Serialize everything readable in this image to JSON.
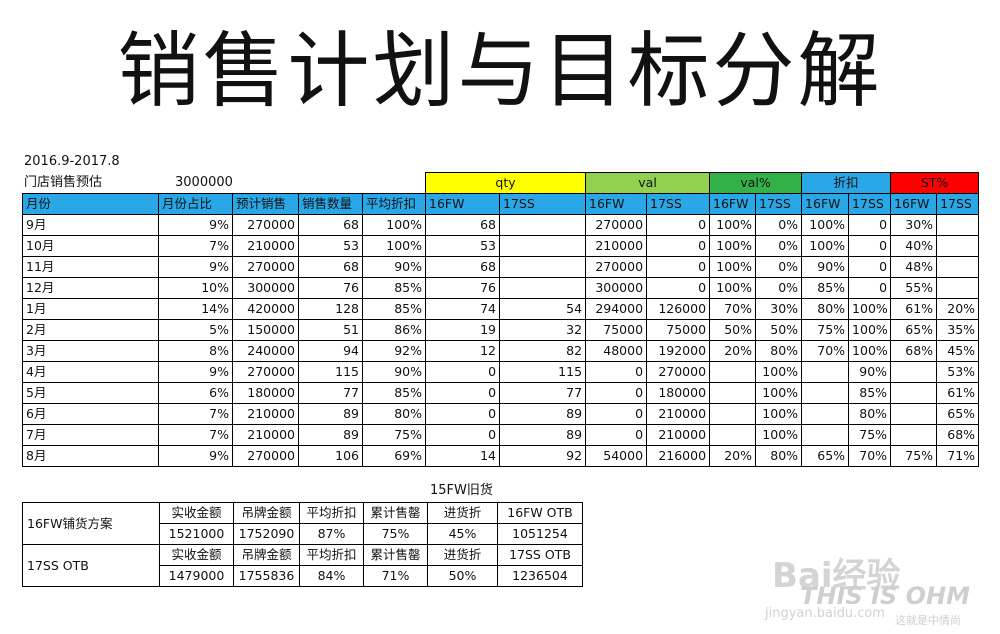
{
  "title": "销售计划与目标分解",
  "period": "2016.9-2017.8",
  "forecast_label": "门店销售预估",
  "forecast_value": "3000000",
  "groups": [
    "qty",
    "val",
    "val%",
    "折扣",
    "ST%"
  ],
  "headers": [
    "月份",
    "月份占比",
    "预计销售",
    "销售数量",
    "平均折扣",
    "16FW",
    "17SS",
    "16FW",
    "17SS",
    "16FW",
    "17SS",
    "16FW",
    "17SS",
    "16FW",
    "17SS"
  ],
  "rows": [
    [
      "9月",
      "9%",
      "270000",
      "68",
      "100%",
      "68",
      "",
      "270000",
      "0",
      "100%",
      "0%",
      "100%",
      "0",
      "30%",
      ""
    ],
    [
      "10月",
      "7%",
      "210000",
      "53",
      "100%",
      "53",
      "",
      "210000",
      "0",
      "100%",
      "0%",
      "100%",
      "0",
      "40%",
      ""
    ],
    [
      "11月",
      "9%",
      "270000",
      "68",
      "90%",
      "68",
      "",
      "270000",
      "0",
      "100%",
      "0%",
      "90%",
      "0",
      "48%",
      ""
    ],
    [
      "12月",
      "10%",
      "300000",
      "76",
      "85%",
      "76",
      "",
      "300000",
      "0",
      "100%",
      "0%",
      "85%",
      "0",
      "55%",
      ""
    ],
    [
      "1月",
      "14%",
      "420000",
      "128",
      "85%",
      "74",
      "54",
      "294000",
      "126000",
      "70%",
      "30%",
      "80%",
      "100%",
      "61%",
      "20%"
    ],
    [
      "2月",
      "5%",
      "150000",
      "51",
      "86%",
      "19",
      "32",
      "75000",
      "75000",
      "50%",
      "50%",
      "75%",
      "100%",
      "65%",
      "35%"
    ],
    [
      "3月",
      "8%",
      "240000",
      "94",
      "92%",
      "12",
      "82",
      "48000",
      "192000",
      "20%",
      "80%",
      "70%",
      "100%",
      "68%",
      "45%"
    ],
    [
      "4月",
      "9%",
      "270000",
      "115",
      "90%",
      "0",
      "115",
      "0",
      "270000",
      "",
      "100%",
      "",
      "90%",
      "",
      "53%"
    ],
    [
      "5月",
      "6%",
      "180000",
      "77",
      "85%",
      "0",
      "77",
      "0",
      "180000",
      "",
      "100%",
      "",
      "85%",
      "",
      "61%"
    ],
    [
      "6月",
      "7%",
      "210000",
      "89",
      "80%",
      "0",
      "89",
      "0",
      "210000",
      "",
      "100%",
      "",
      "80%",
      "",
      "65%"
    ],
    [
      "7月",
      "7%",
      "210000",
      "89",
      "75%",
      "0",
      "89",
      "0",
      "210000",
      "",
      "100%",
      "",
      "75%",
      "",
      "68%"
    ],
    [
      "8月",
      "9%",
      "270000",
      "106",
      "69%",
      "14",
      "92",
      "54000",
      "216000",
      "20%",
      "80%",
      "65%",
      "70%",
      "75%",
      "71%"
    ]
  ],
  "otb": {
    "caption": "15FW旧货",
    "blocks": [
      {
        "label": "16FW铺货方案",
        "headers": [
          "实收金额",
          "吊牌金额",
          "平均折扣",
          "累计售罄",
          "进货折",
          "16FW OTB"
        ],
        "values": [
          "1521000",
          "1752090",
          "87%",
          "75%",
          "45%",
          "1051254"
        ]
      },
      {
        "label": "17SS OTB",
        "headers": [
          "实收金额",
          "吊牌金额",
          "平均折扣",
          "累计售罄",
          "进货折",
          "17SS OTB"
        ],
        "values": [
          "1479000",
          "1755836",
          "84%",
          "71%",
          "50%",
          "1236504"
        ]
      }
    ]
  },
  "watermark": {
    "brand": "Bai经验",
    "site": "jingyan.baidu.com",
    "mark": "THIS IS OHM",
    "sub": "这就是中情尚"
  }
}
